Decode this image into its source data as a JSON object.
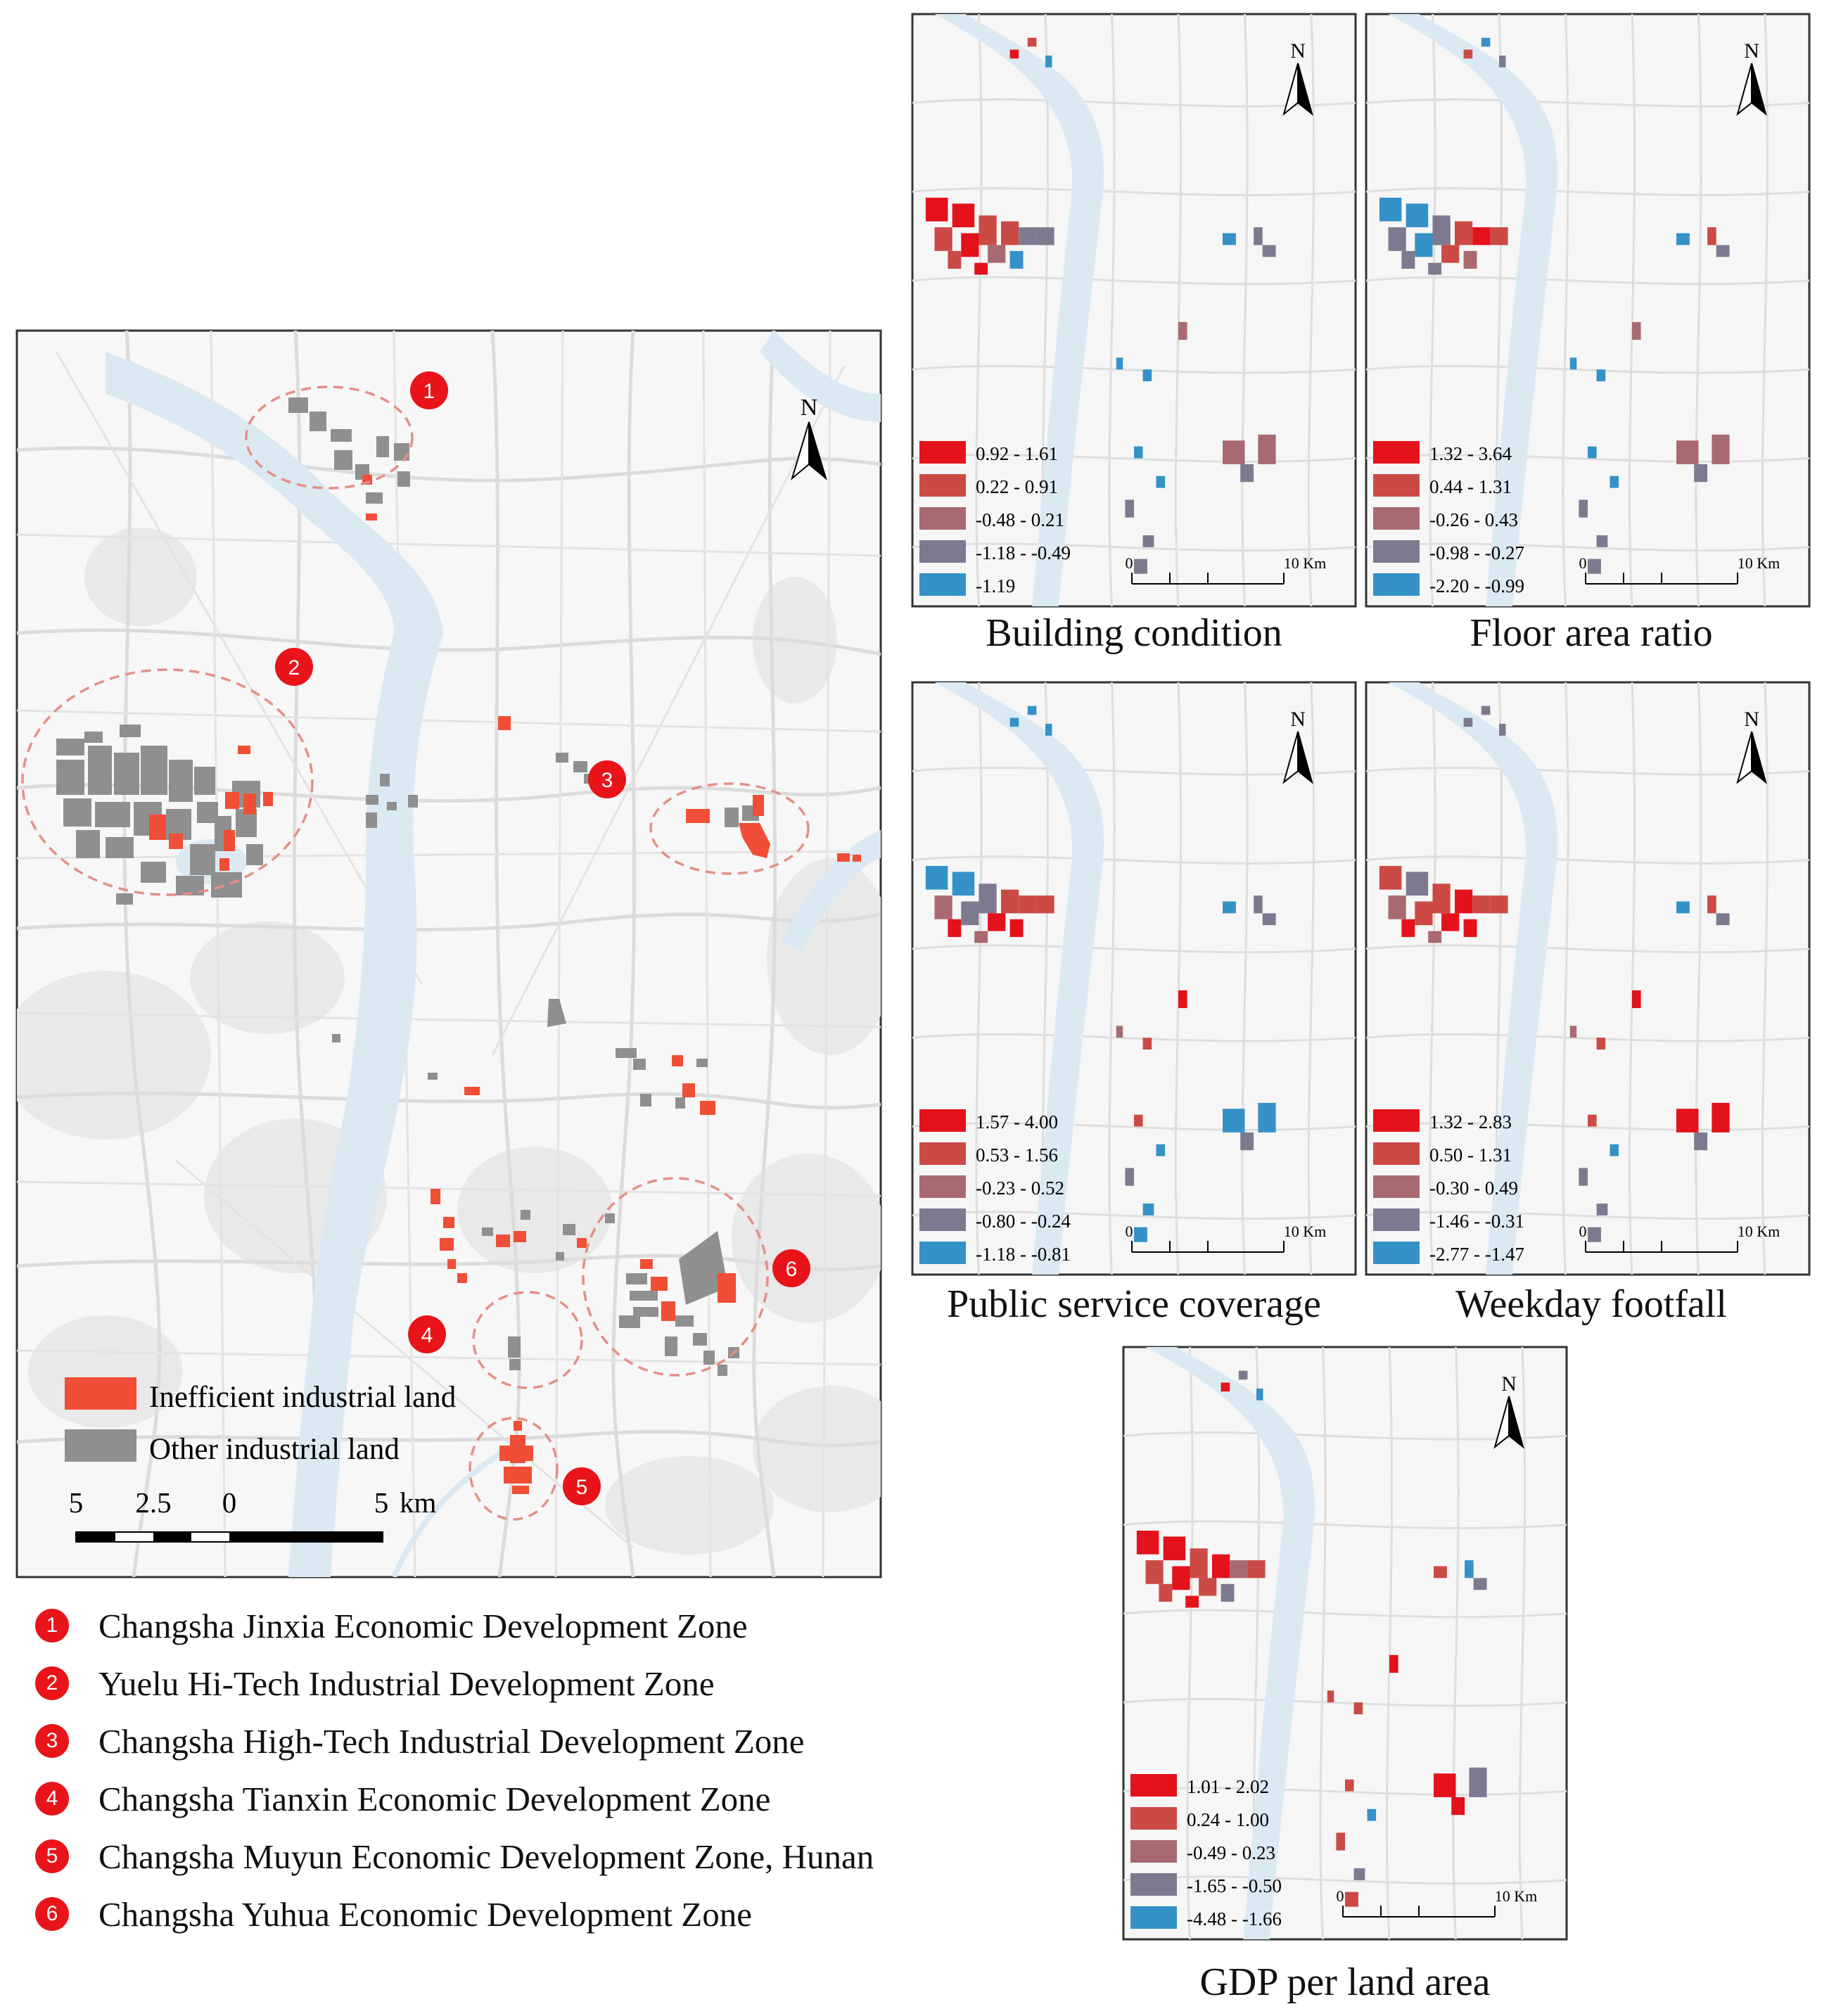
{
  "colors": {
    "inefficient": "#f04e36",
    "other": "#8f8f8f",
    "zone_marker": "#e8141a",
    "class_1": "#e3121b",
    "class_2": "#cc4a45",
    "class_3": "#a86a70",
    "class_4": "#7d7a90",
    "class_5": "#3592c8",
    "water": "#dbe9f3"
  },
  "main_map": {
    "legend": [
      {
        "label": "Inefficient industrial land",
        "color_key": "inefficient"
      },
      {
        "label": "Other industrial land",
        "color_key": "other"
      }
    ],
    "scale_bar": {
      "labels": [
        "5",
        "2.5",
        "0",
        "5"
      ],
      "unit": "km"
    },
    "north_label": "N",
    "zone_markers": [
      "1",
      "2",
      "3",
      "4",
      "5",
      "6"
    ]
  },
  "zone_list": [
    {
      "number": "1",
      "name": "Changsha Jinxia Economic Development Zone"
    },
    {
      "number": "2",
      "name": "Yuelu Hi-Tech Industrial Development Zone"
    },
    {
      "number": "3",
      "name": "Changsha High-Tech Industrial Development Zone"
    },
    {
      "number": "4",
      "name": "Changsha Tianxin Economic Development Zone"
    },
    {
      "number": "5",
      "name": "Changsha Muyun Economic Development Zone, Hunan"
    },
    {
      "number": "6",
      "name": "Changsha Yuhua Economic Development Zone"
    }
  ],
  "small_maps": [
    {
      "id": "building-condition",
      "title": "Building condition",
      "classes": [
        "0.92 - 1.61",
        "0.22 - 0.91",
        "-0.48 - 0.21",
        "-1.18 - -0.49",
        "-1.19"
      ],
      "scale": {
        "start": "0",
        "end": "10 Km"
      },
      "north_label": "N"
    },
    {
      "id": "floor-area-ratio",
      "title": "Floor area ratio",
      "classes": [
        "1.32 - 3.64",
        "0.44 - 1.31",
        "-0.26 - 0.43",
        "-0.98 - -0.27",
        "-2.20 - -0.99"
      ],
      "scale": {
        "start": "0",
        "end": "10 Km"
      },
      "north_label": "N"
    },
    {
      "id": "public-service-coverage",
      "title": "Public service coverage",
      "classes": [
        "1.57 - 4.00",
        "0.53 - 1.56",
        "-0.23 - 0.52",
        "-0.80 - -0.24",
        "-1.18 - -0.81"
      ],
      "scale": {
        "start": "0",
        "end": "10 Km"
      },
      "north_label": "N"
    },
    {
      "id": "weekday-footfall",
      "title": "Weekday footfall",
      "classes": [
        "1.32 - 2.83",
        "0.50 - 1.31",
        "-0.30 - 0.49",
        "-1.46 - -0.31",
        "-2.77 - -1.47"
      ],
      "scale": {
        "start": "0",
        "end": "10 Km"
      },
      "north_label": "N"
    },
    {
      "id": "gdp-per-land-area",
      "title": "GDP per land area",
      "classes": [
        "1.01 - 2.02",
        "0.24 - 1.00",
        "-0.49 - 0.23",
        "-1.65 - -0.50",
        "-4.48 - -1.66"
      ],
      "scale": {
        "start": "0",
        "end": "10 Km"
      },
      "north_label": "N"
    }
  ]
}
